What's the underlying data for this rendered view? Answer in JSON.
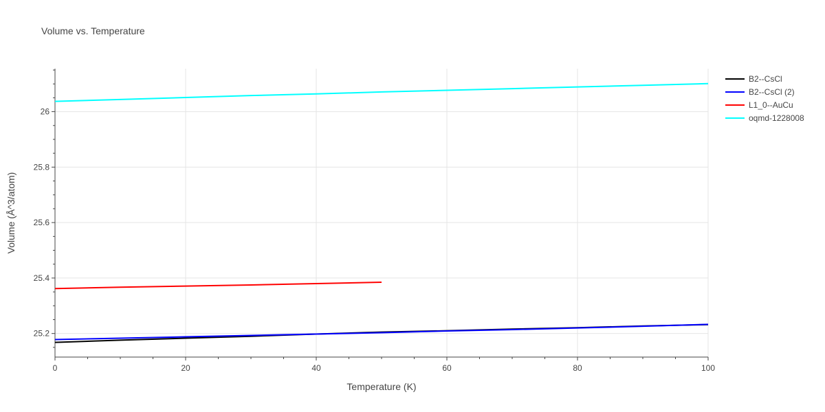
{
  "chart_data": {
    "type": "line",
    "title": "Volume vs. Temperature",
    "xlabel": "Temperature (K)",
    "ylabel": "Volume (Å^3/atom)",
    "xlim": [
      0,
      100
    ],
    "ylim": [
      25.115,
      26.155
    ],
    "xticks": [
      0,
      20,
      40,
      60,
      80,
      100
    ],
    "yticks": [
      25.2,
      25.4,
      25.6,
      25.8,
      26
    ],
    "ytick_labels": [
      "25.2",
      "25.4",
      "25.6",
      "25.8",
      "26"
    ],
    "grid": true,
    "legend_position": "top-right",
    "series": [
      {
        "name": "B2--CsCl",
        "color": "#000000",
        "x": [
          0,
          10,
          20,
          30,
          40,
          50,
          60,
          70,
          80,
          90,
          100
        ],
        "y": [
          25.168,
          25.176,
          25.183,
          25.19,
          25.198,
          25.205,
          25.21,
          25.216,
          25.221,
          25.227,
          25.232
        ]
      },
      {
        "name": "B2--CsCl (2)",
        "color": "#0000ff",
        "x": [
          0,
          10,
          20,
          30,
          40,
          50,
          60,
          70,
          80,
          90,
          100
        ],
        "y": [
          25.178,
          25.183,
          25.188,
          25.193,
          25.198,
          25.203,
          25.209,
          25.214,
          25.22,
          25.226,
          25.233
        ]
      },
      {
        "name": "L1_0--AuCu",
        "color": "#ff0000",
        "x": [
          0,
          10,
          20,
          30,
          40,
          50
        ],
        "y": [
          25.362,
          25.367,
          25.371,
          25.375,
          25.38,
          25.385
        ]
      },
      {
        "name": "oqmd-1228008",
        "color": "#00ffff",
        "x": [
          0,
          10,
          20,
          30,
          40,
          50,
          60,
          70,
          80,
          90,
          100
        ],
        "y": [
          26.037,
          26.044,
          26.051,
          26.058,
          26.064,
          26.071,
          26.077,
          26.083,
          26.089,
          26.095,
          26.101
        ]
      }
    ]
  }
}
